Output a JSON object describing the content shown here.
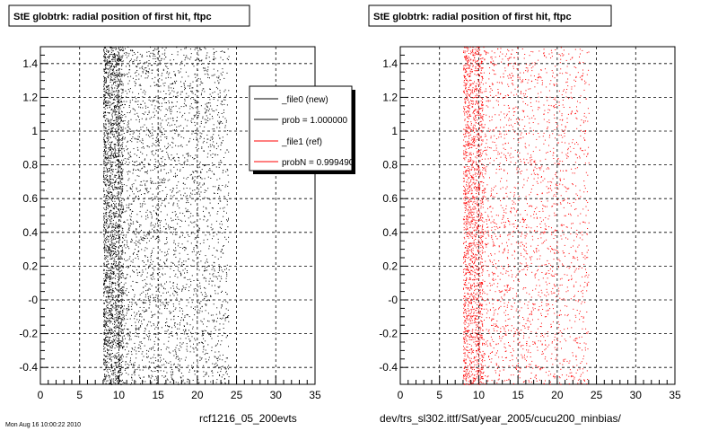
{
  "footer": {
    "timestamp": "Mon Aug 16 10:00:22 2010"
  },
  "chart_data": [
    {
      "type": "scatter",
      "title": "StE globtrk: radial position of first hit, ftpc",
      "xlabel": "rcf1216_05_200evts",
      "ylabel": "",
      "xlim": [
        0,
        35
      ],
      "ylim": [
        -0.5,
        1.5
      ],
      "xticks": [
        0,
        5,
        10,
        15,
        20,
        25,
        30,
        35
      ],
      "yticks": [
        -0.4,
        -0.2,
        0,
        0.2,
        0.4,
        0.6,
        0.8,
        1,
        1.2,
        1.4
      ],
      "ytick_labels": [
        "-0.4",
        "-0.2",
        "-0",
        "0.2",
        "0.4",
        "0.6",
        "0.8",
        "1",
        "1.2",
        "1.4"
      ],
      "grid": true,
      "series": [
        {
          "name": "_file0 (new)",
          "color": "#000000",
          "x_range": [
            8,
            24
          ],
          "dense_edge": [
            8,
            10.5
          ],
          "ymin": -0.5,
          "ymax": 1.5,
          "points": 5200
        }
      ],
      "legend": {
        "placement": "top-right",
        "entries": [
          {
            "label": "_file0 (new)",
            "color": "#000000"
          },
          {
            "label": "prob = 1.000000",
            "color": "#000000"
          },
          {
            "label": "_file1 (ref)",
            "color": "#ff0000"
          },
          {
            "label": "probN = 0.999490",
            "color": "#ff0000"
          }
        ]
      }
    },
    {
      "type": "scatter",
      "title": "StE globtrk: radial position of first hit, ftpc",
      "xlabel": "dev/trs_sl302.ittf/Sat/year_2005/cucu200_minbias/",
      "ylabel": "",
      "xlim": [
        0,
        35
      ],
      "ylim": [
        -0.5,
        1.5
      ],
      "xticks": [
        0,
        5,
        10,
        15,
        20,
        25,
        30,
        35
      ],
      "yticks": [
        -0.4,
        -0.2,
        0,
        0.2,
        0.4,
        0.6,
        0.8,
        1,
        1.2,
        1.4
      ],
      "ytick_labels": [
        "-0.4",
        "-0.2",
        "-0",
        "0.2",
        "0.4",
        "0.6",
        "0.8",
        "1",
        "1.2",
        "1.4"
      ],
      "grid": true,
      "series": [
        {
          "name": "_file1 (ref)",
          "color": "#ff0000",
          "x_range": [
            8,
            24
          ],
          "dense_edge": [
            8,
            10.5
          ],
          "ymin": -0.5,
          "ymax": 1.5,
          "points": 3800
        }
      ]
    }
  ]
}
